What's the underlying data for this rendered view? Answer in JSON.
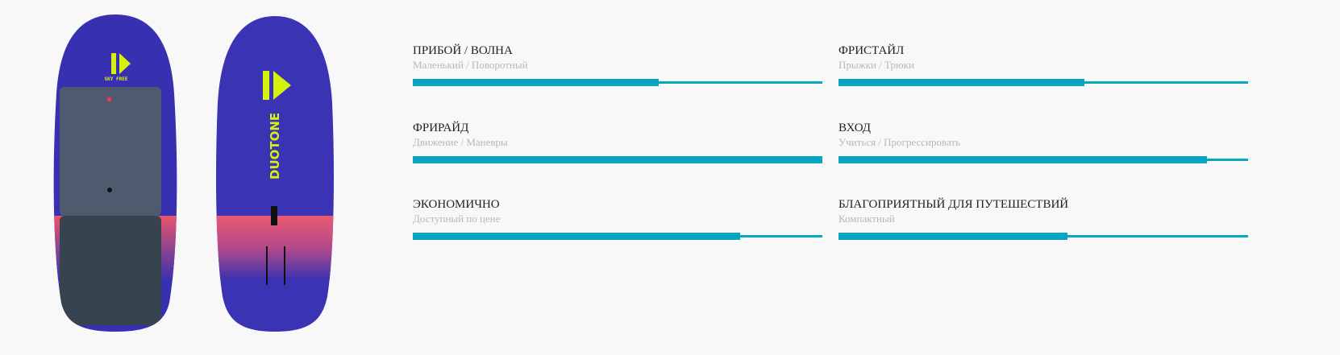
{
  "brand": "DUOTONE",
  "board_model_label": "SKY FREE",
  "accent_color": "#08a5c2",
  "specs": [
    {
      "title": "ПРИБОЙ / ВОЛНА",
      "subtitle": "Маленький / Поворотный",
      "value": 0.6
    },
    {
      "title": "ФРИСТАЙЛ",
      "subtitle": "Прыжки / Трюки",
      "value": 0.6
    },
    {
      "title": "ФРИРАЙД",
      "subtitle": "Движение / Маневры",
      "value": 1.0
    },
    {
      "title": "ВХОД",
      "subtitle": "Учиться / Прогрессировать",
      "value": 0.9
    },
    {
      "title": "ЭКОНОМИЧНО",
      "subtitle": "Доступный по цене",
      "value": 0.8
    },
    {
      "title": "БЛАГОПРИЯТНЫЙ ДЛЯ ПУТЕШЕСТВИЙ",
      "subtitle": "Компактный",
      "value": 0.56
    }
  ]
}
